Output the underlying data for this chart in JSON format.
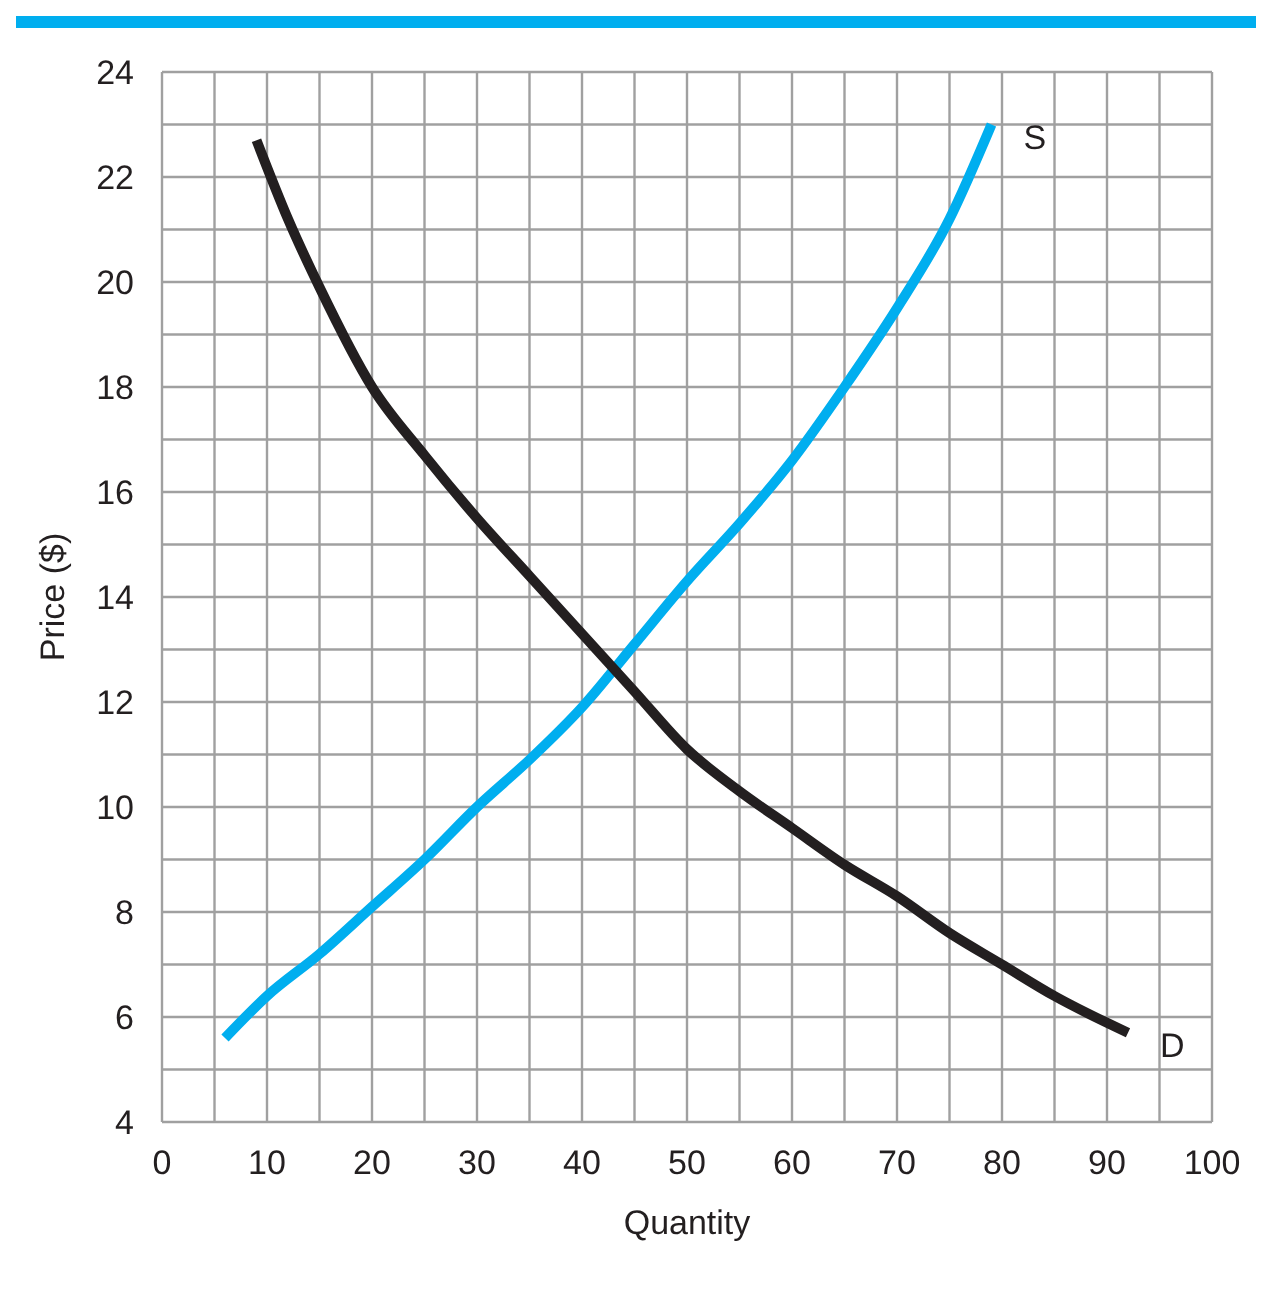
{
  "chart_data": {
    "type": "line",
    "xlabel": "Quantity",
    "ylabel": "Price ($)",
    "xlim": [
      0,
      100
    ],
    "xticks": [
      0,
      10,
      20,
      30,
      40,
      50,
      60,
      70,
      80,
      90,
      100
    ],
    "ylim": [
      4,
      24
    ],
    "yticks": [
      4,
      6,
      8,
      10,
      12,
      14,
      16,
      18,
      20,
      22,
      24
    ],
    "grid": true,
    "legend": false,
    "marker": "none",
    "line_style": "solid",
    "series": [
      {
        "name": "S",
        "color": "#00aeef",
        "x": [
          6,
          10,
          15,
          20,
          25,
          30,
          35,
          40,
          45,
          50,
          55,
          60,
          65,
          70,
          75,
          79
        ],
        "values": [
          5.6,
          6.4,
          7.2,
          8.1,
          9.0,
          10.0,
          10.9,
          11.9,
          13.1,
          14.3,
          15.4,
          16.6,
          18.0,
          19.5,
          21.2,
          23.0
        ]
      },
      {
        "name": "D",
        "color": "#231f20",
        "x": [
          9,
          12,
          15,
          20,
          25,
          30,
          35,
          40,
          45,
          50,
          55,
          60,
          65,
          70,
          75,
          80,
          85,
          92
        ],
        "values": [
          22.7,
          21.2,
          19.9,
          18.0,
          16.7,
          15.5,
          14.4,
          13.3,
          12.2,
          11.1,
          10.3,
          9.6,
          8.9,
          8.3,
          7.6,
          7.0,
          6.4,
          5.7
        ]
      }
    ]
  }
}
